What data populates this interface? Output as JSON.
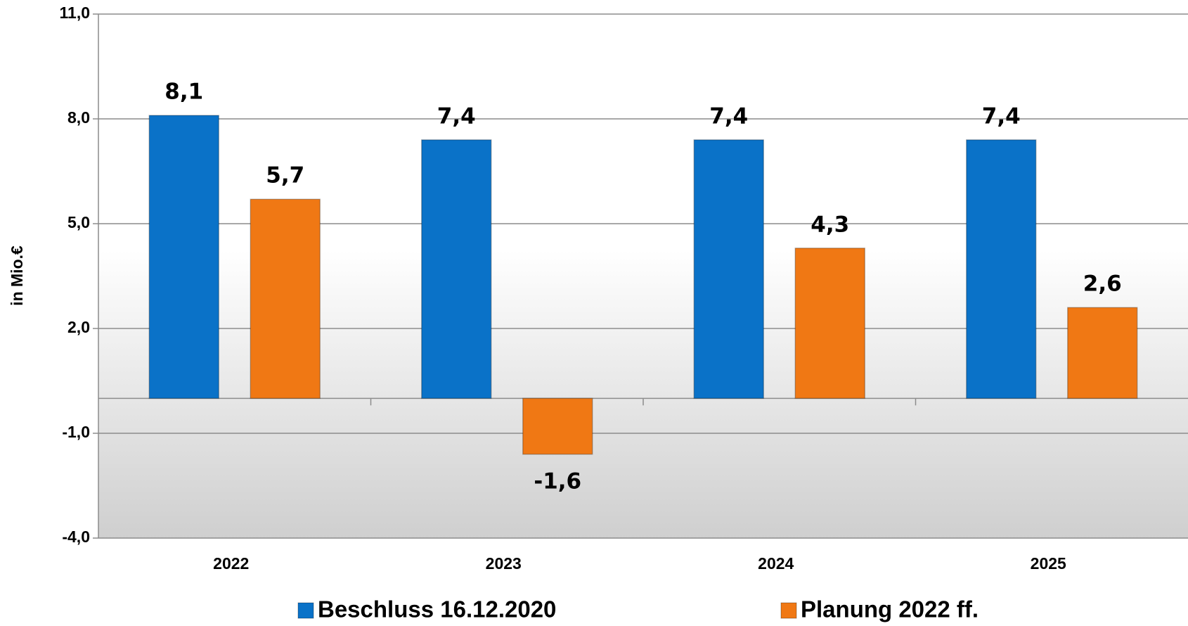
{
  "chart_data": {
    "type": "bar",
    "y_label": "in Mio.€",
    "categories": [
      "2022",
      "2023",
      "2024",
      "2025"
    ],
    "series": [
      {
        "name": "Beschluss 16.12.2020",
        "color": "#0a72c8",
        "values": [
          8.1,
          7.4,
          7.4,
          7.4
        ],
        "value_labels": [
          "8,1",
          "7,4",
          "7,4",
          "7,4"
        ]
      },
      {
        "name": "Planung 2022 ff.",
        "color": "#f07814",
        "values": [
          5.7,
          -1.6,
          4.3,
          2.6
        ],
        "value_labels": [
          "5,7",
          "-1,6",
          "4,3",
          "2,6"
        ]
      }
    ],
    "ylim": [
      -4,
      11
    ],
    "yticks": [
      {
        "value": -4,
        "label": "-4,0"
      },
      {
        "value": -1,
        "label": "-1,0"
      },
      {
        "value": 2,
        "label": "2,0"
      },
      {
        "value": 5,
        "label": "5,0"
      },
      {
        "value": 8,
        "label": "8,0"
      },
      {
        "value": 11,
        "label": "11,0"
      }
    ],
    "grid": true
  }
}
